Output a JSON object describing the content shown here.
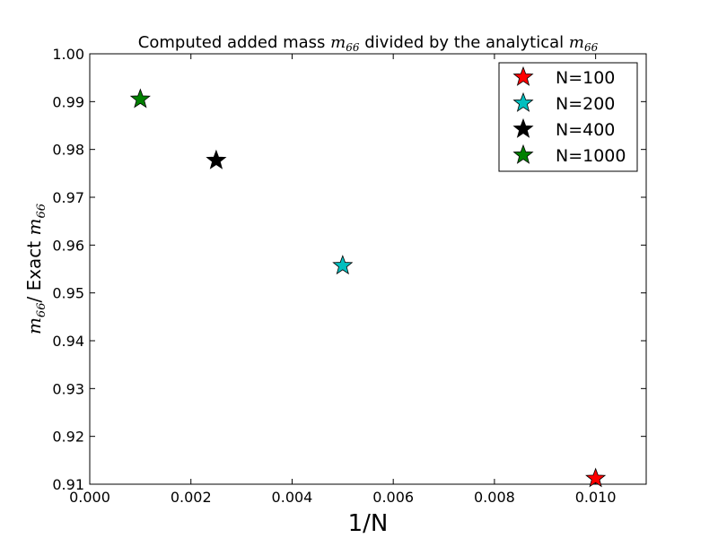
{
  "chart_data": {
    "type": "scatter",
    "title": {
      "prefix": "Computed added mass ",
      "math1": "m",
      "math1_sub": "66",
      "middle": " divided by the analytical ",
      "math2": "m",
      "math2_sub": "66"
    },
    "xlabel": "1/N",
    "ylabel": {
      "math": "m",
      "math_sub": "66",
      "text": "/ Exact ",
      "math2": "m",
      "math2_sub": "66"
    },
    "xlim": [
      0.0,
      0.011
    ],
    "ylim": [
      0.91,
      1.0
    ],
    "xticks": [
      0.0,
      0.002,
      0.004,
      0.006,
      0.008,
      0.01
    ],
    "xtick_labels": [
      "0.000",
      "0.002",
      "0.004",
      "0.006",
      "0.008",
      "0.010"
    ],
    "yticks": [
      0.91,
      0.92,
      0.93,
      0.94,
      0.95,
      0.96,
      0.97,
      0.98,
      0.99,
      1.0
    ],
    "ytick_labels": [
      "0.91",
      "0.92",
      "0.93",
      "0.94",
      "0.95",
      "0.96",
      "0.97",
      "0.98",
      "0.99",
      "1.00"
    ],
    "grid": false,
    "legend_position": "top-right",
    "marker": "star",
    "series": [
      {
        "name": "N=100",
        "color": "#ff0000",
        "x": 0.01,
        "y": 0.9112
      },
      {
        "name": "N=200",
        "color": "#00bfbf",
        "x": 0.005,
        "y": 0.9557
      },
      {
        "name": "N=400",
        "color": "#000000",
        "x": 0.0025,
        "y": 0.9777
      },
      {
        "name": "N=1000",
        "color": "#008000",
        "x": 0.001,
        "y": 0.9905
      }
    ]
  }
}
